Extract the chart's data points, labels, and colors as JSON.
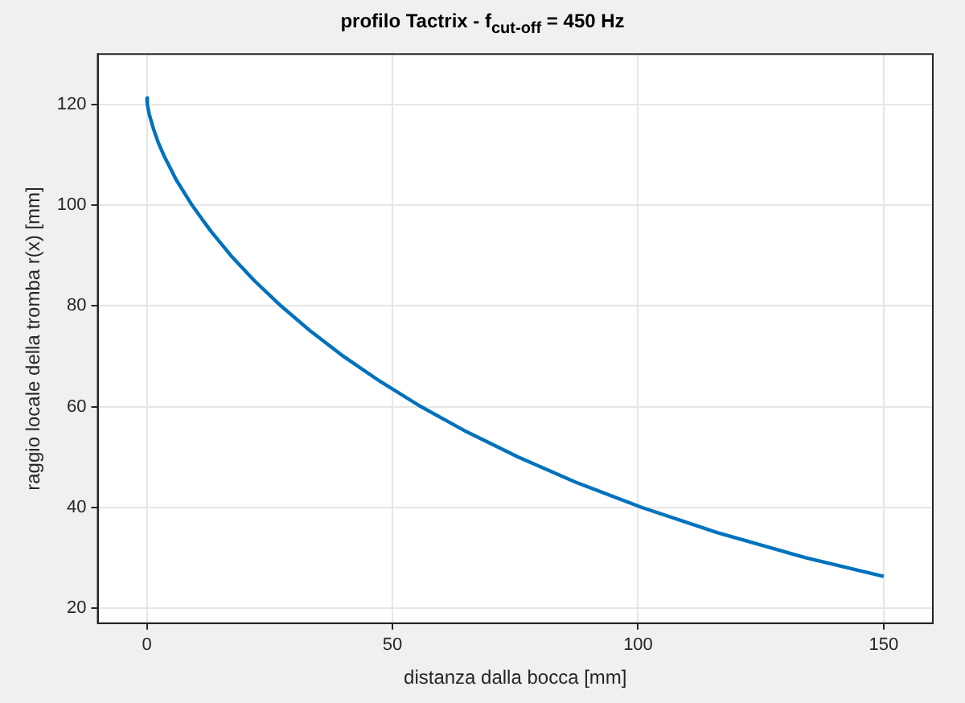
{
  "chart_data": {
    "type": "line",
    "title": "profilo Tactrix - f$_{cut-off}$ = 450 Hz",
    "xlabel": "distanza dalla bocca [mm]",
    "ylabel": "raggio locale della tromba r(x) [mm]",
    "series": [
      {
        "color": "#0072bd",
        "x": [
          0,
          0.1,
          0.5,
          1.4,
          2.3,
          3.4,
          6,
          9.2,
          12.9,
          17.1,
          21.9,
          27.3,
          33.3,
          40,
          47.5,
          55.8,
          65.1,
          75.6,
          87.3,
          100.7,
          116.1,
          134.1,
          150
        ],
        "values": [
          121.3,
          120,
          118,
          115,
          112.5,
          110,
          105,
          100,
          95,
          90,
          85,
          80,
          75,
          70,
          65,
          60,
          55,
          50,
          45,
          40,
          35,
          30,
          26.3
        ]
      }
    ],
    "xlim": [
      -10,
      160
    ],
    "xticks": [
      0,
      50,
      100,
      150
    ],
    "ylim": [
      17,
      130
    ],
    "yticks": [
      20,
      40,
      60,
      80,
      100,
      120
    ],
    "grid": true,
    "marker": "none",
    "line_style": "solid"
  }
}
